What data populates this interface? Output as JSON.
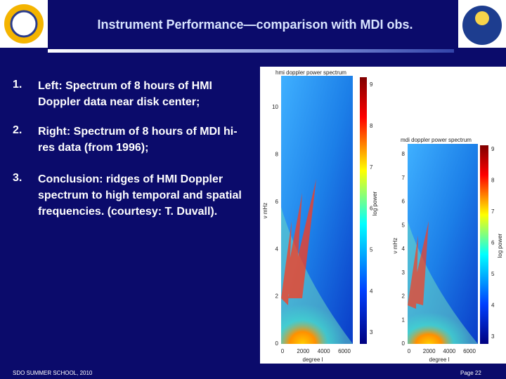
{
  "title": "Instrument Performance—comparison with MDI obs.",
  "items": [
    {
      "number": "1.",
      "text": "Left: Spectrum of 8 hours of HMI Doppler data near disk center;"
    },
    {
      "number": "2.",
      "text": "Right: Spectrum of 8 hours of MDI hi-res data (from 1996);"
    },
    {
      "number": "3.",
      "text": "Conclusion: ridges of HMI Doppler spectrum to high temporal and spatial frequencies. (courtesy: T. Duvall)."
    }
  ],
  "figures": [
    {
      "title": "hmi doppler power spectrum",
      "ylabel": "ν mHz",
      "xlabel": "degree l",
      "colorbar_label": "log power",
      "yticks": [
        10,
        8,
        6,
        4,
        2,
        0
      ],
      "xticks": [
        0,
        2000,
        4000,
        6000
      ],
      "colorbar_ticks": [
        9,
        8,
        7,
        6,
        5,
        4,
        3
      ]
    },
    {
      "title": "mdi doppler power spectrum",
      "ylabel": "ν mHz",
      "xlabel": "degree l",
      "colorbar_label": "log power",
      "yticks": [
        8,
        7,
        6,
        5,
        4,
        3,
        2,
        1,
        0
      ],
      "xticks": [
        0,
        2000,
        4000,
        6000
      ],
      "colorbar_ticks": [
        9,
        8,
        7,
        6,
        5,
        4,
        3
      ]
    }
  ],
  "footer": {
    "left": "SDO SUMMER SCHOOL, 2010",
    "right": "Page 22"
  }
}
